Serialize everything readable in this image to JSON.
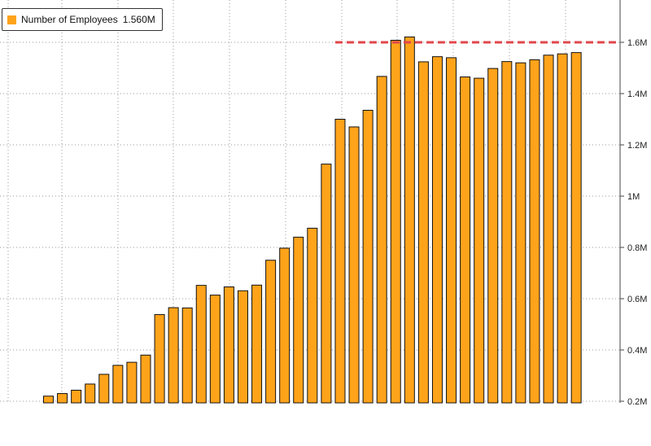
{
  "chart_data": {
    "type": "bar",
    "title": "",
    "xlabel": "",
    "ylabel": "",
    "ylim": [
      0.2,
      1.76
    ],
    "y_ticks": [
      0.2,
      0.4,
      0.6,
      0.8,
      1.0,
      1.2,
      1.4,
      1.6
    ],
    "y_tick_labels": [
      "0.2M",
      "0.4M",
      "0.6M",
      "0.8M",
      "1M",
      "1.2M",
      "1.4M",
      "1.6M"
    ],
    "grid": true,
    "legend_position": "top-left",
    "legend": {
      "label": "Number of Employees",
      "value": "1.560M"
    },
    "series": [
      {
        "name": "Number of Employees",
        "color": "#FFA31A",
        "values": [
          0.22,
          0.23,
          0.243,
          0.267,
          0.305,
          0.34,
          0.352,
          0.38,
          0.538,
          0.565,
          0.564,
          0.652,
          0.614,
          0.646,
          0.631,
          0.653,
          0.75,
          0.797,
          0.84,
          0.875,
          1.125,
          1.3,
          1.27,
          1.335,
          1.467,
          1.608,
          1.621,
          1.524,
          1.544,
          1.54,
          1.465,
          1.46,
          1.498,
          1.525,
          1.52,
          1.532,
          1.55,
          1.555,
          1.56
        ]
      }
    ],
    "reference_line": {
      "value": 1.6,
      "color": "#E0474C",
      "from_index": 21
    }
  }
}
